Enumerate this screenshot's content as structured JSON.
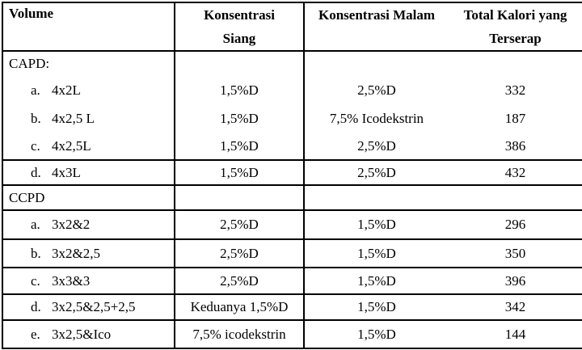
{
  "table": {
    "headers": {
      "volume": "Volume",
      "siang_line1": "Konsentrasi",
      "siang_line2": "Siang",
      "malam": "Konsentrasi Malam",
      "kalori_line1": "Total Kalori yang",
      "kalori_line2": "Terserap"
    },
    "rows": [
      {
        "letter": "",
        "volume": "CAPD:",
        "siang": "",
        "malam": "",
        "kalori": ""
      },
      {
        "letter": "a.",
        "volume": "4x2L",
        "siang": "1,5%D",
        "malam": "2,5%D",
        "kalori": "332"
      },
      {
        "letter": "b.",
        "volume": "4x2,5 L",
        "siang": "1,5%D",
        "malam": "7,5% Icodekstrin",
        "kalori": "187"
      },
      {
        "letter": "c.",
        "volume": "4x2,5L",
        "siang": "1,5%D",
        "malam": "2,5%D",
        "kalori": "386"
      },
      {
        "letter": "d.",
        "volume": "4x3L",
        "siang": "1,5%D",
        "malam": "2,5%D",
        "kalori": "432"
      },
      {
        "letter": "",
        "volume": "CCPD",
        "siang": "",
        "malam": "",
        "kalori": ""
      },
      {
        "letter": "a.",
        "volume": "3x2&2",
        "siang": "2,5%D",
        "malam": "1,5%D",
        "kalori": "296"
      },
      {
        "letter": "b.",
        "volume": "3x2&2,5",
        "siang": "2,5%D",
        "malam": "1,5%D",
        "kalori": "350"
      },
      {
        "letter": "c.",
        "volume": "3x3&3",
        "siang": "2,5%D",
        "malam": "1,5%D",
        "kalori": "396"
      },
      {
        "letter": "d.",
        "volume": "3x2,5&2,5+2,5",
        "siang": "Keduanya 1,5%D",
        "malam": "1,5%D",
        "kalori": "342"
      },
      {
        "letter": "e.",
        "volume": "3x2,5&Ico",
        "siang": "7,5% icodekstrin",
        "malam": "1,5%D",
        "kalori": "144"
      }
    ]
  }
}
